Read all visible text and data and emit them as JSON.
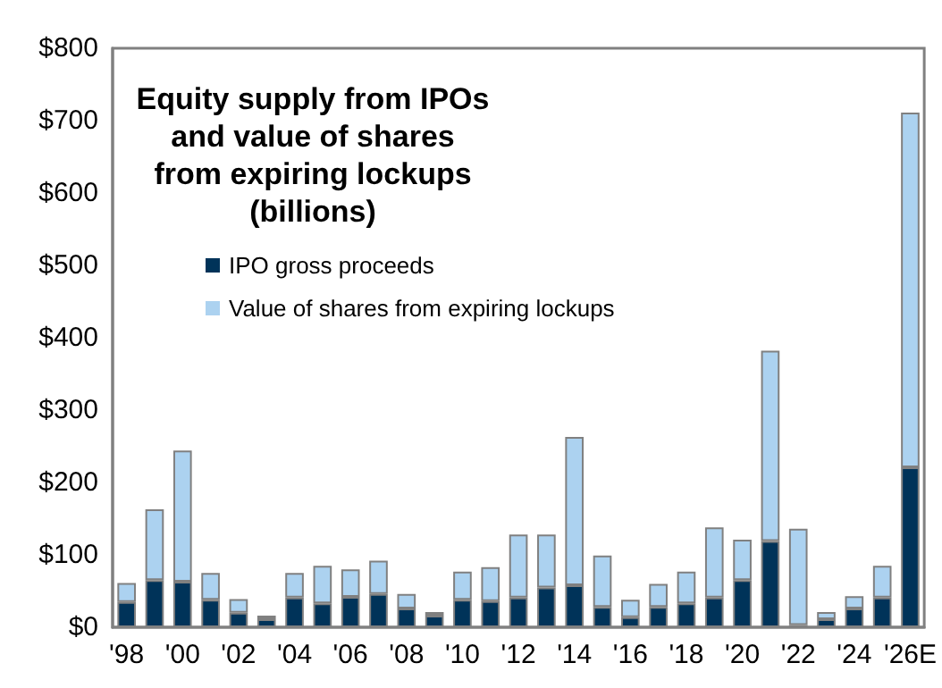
{
  "chart_data": {
    "type": "bar",
    "stacked": true,
    "title": "Equity supply from IPOs\nand value of shares\nfrom expiring lockups\n(billions)",
    "categories": [
      "'98",
      null,
      "'00",
      null,
      "'02",
      null,
      "'04",
      null,
      "'06",
      null,
      "'08",
      null,
      "'10",
      null,
      "'12",
      null,
      "'14",
      null,
      "'16",
      null,
      "'18",
      null,
      "'20",
      null,
      "'22",
      null,
      "'24",
      null,
      "'26E"
    ],
    "series": [
      {
        "name": "IPO gross proceeds",
        "color": "#003359",
        "values": [
          35,
          65,
          63,
          38,
          20,
          11,
          41,
          33,
          42,
          46,
          26,
          16,
          38,
          36,
          41,
          55,
          58,
          28,
          14,
          28,
          33,
          41,
          65,
          119,
          3,
          11,
          26,
          41,
          221
        ]
      },
      {
        "name": "Value of shares from expiring lockups",
        "color": "#acd2f0",
        "values": [
          26,
          98,
          181,
          37,
          19,
          5,
          34,
          52,
          38,
          46,
          20,
          5,
          39,
          47,
          87,
          73,
          205,
          71,
          24,
          32,
          44,
          97,
          56,
          263,
          133,
          10,
          17,
          44,
          490
        ]
      }
    ],
    "ylim": [
      0,
      800
    ],
    "yticks": [
      {
        "value": 0,
        "label": "$0"
      },
      {
        "value": 100,
        "label": "$100"
      },
      {
        "value": 200,
        "label": "$200"
      },
      {
        "value": 300,
        "label": "$300"
      },
      {
        "value": 400,
        "label": "$400"
      },
      {
        "value": 500,
        "label": "$500"
      },
      {
        "value": 600,
        "label": "$600"
      },
      {
        "value": 700,
        "label": "$700"
      },
      {
        "value": 800,
        "label": "$800"
      }
    ],
    "grid": false,
    "legend": "top left"
  }
}
